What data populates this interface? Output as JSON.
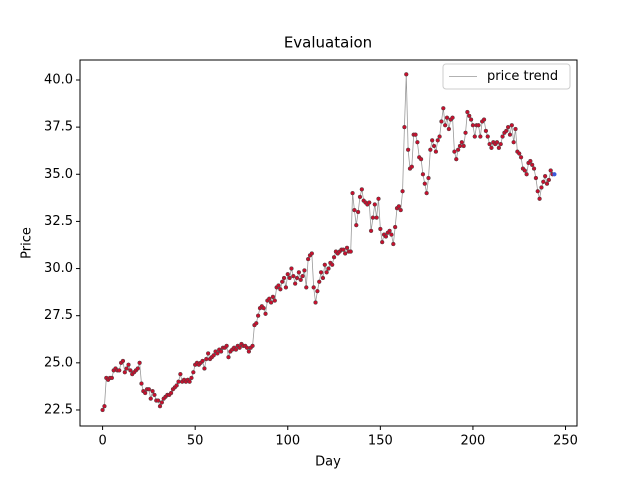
{
  "chart_data": {
    "type": "line",
    "title": "Evaluataion",
    "x_label": "Day",
    "y_label": "Price",
    "x": [
      0,
      1,
      2,
      3,
      4,
      5,
      6,
      7,
      8,
      9,
      10,
      11,
      12,
      13,
      14,
      15,
      16,
      17,
      18,
      19,
      20,
      21,
      22,
      23,
      24,
      25,
      26,
      27,
      28,
      29,
      30,
      31,
      32,
      33,
      34,
      35,
      36,
      37,
      38,
      39,
      40,
      41,
      42,
      43,
      44,
      45,
      46,
      47,
      48,
      49,
      50,
      51,
      52,
      53,
      54,
      55,
      56,
      57,
      58,
      59,
      60,
      61,
      62,
      63,
      64,
      65,
      66,
      67,
      68,
      69,
      70,
      71,
      72,
      73,
      74,
      75,
      76,
      77,
      78,
      79,
      80,
      81,
      82,
      83,
      84,
      85,
      86,
      87,
      88,
      89,
      90,
      91,
      92,
      93,
      94,
      95,
      96,
      97,
      98,
      99,
      100,
      101,
      102,
      103,
      104,
      105,
      106,
      107,
      108,
      109,
      110,
      111,
      112,
      113,
      114,
      115,
      116,
      117,
      118,
      119,
      120,
      121,
      122,
      123,
      124,
      125,
      126,
      127,
      128,
      129,
      130,
      131,
      132,
      133,
      134,
      135,
      136,
      137,
      138,
      139,
      140,
      141,
      142,
      143,
      144,
      145,
      146,
      147,
      148,
      149,
      150,
      151,
      152,
      153,
      154,
      155,
      156,
      157,
      158,
      159,
      160,
      161,
      162,
      163,
      164,
      165,
      166,
      167,
      168,
      169,
      170,
      171,
      172,
      173,
      174,
      175,
      176,
      177,
      178,
      179,
      180,
      181,
      182,
      183,
      184,
      185,
      186,
      187,
      188,
      189,
      190,
      191,
      192,
      193,
      194,
      195,
      196,
      197,
      198,
      199,
      200,
      201,
      202,
      203,
      204,
      205,
      206,
      207,
      208,
      209,
      210,
      211,
      212,
      213,
      214,
      215,
      216,
      217,
      218,
      219,
      220,
      221,
      222,
      223,
      224,
      225,
      226,
      227,
      228,
      229,
      230,
      231,
      232,
      233,
      234,
      235,
      236,
      237,
      238,
      239,
      240,
      241,
      242,
      243,
      244
    ],
    "series": [
      {
        "name": "price trend",
        "color": "#999999",
        "marker_color": "#c8102e",
        "last_marker_color": "#3b5bdb",
        "values": [
          22.5,
          22.7,
          24.2,
          24.1,
          24.2,
          24.2,
          24.6,
          24.7,
          24.6,
          24.6,
          25.0,
          25.1,
          24.5,
          24.7,
          24.9,
          24.6,
          24.4,
          24.5,
          24.6,
          24.7,
          25.0,
          23.9,
          23.5,
          23.4,
          23.6,
          23.6,
          23.1,
          23.5,
          23.3,
          23.0,
          23.0,
          22.7,
          22.9,
          23.1,
          23.2,
          23.3,
          23.3,
          23.4,
          23.6,
          23.7,
          23.8,
          24.0,
          24.4,
          24.0,
          24.1,
          24.0,
          24.1,
          24.0,
          24.2,
          24.5,
          24.9,
          25.0,
          24.9,
          25.0,
          25.1,
          24.7,
          25.2,
          25.5,
          25.2,
          25.3,
          25.4,
          25.6,
          25.5,
          25.7,
          25.6,
          25.8,
          25.8,
          25.9,
          25.3,
          25.6,
          25.7,
          25.8,
          25.7,
          25.9,
          25.8,
          26.0,
          25.9,
          25.9,
          25.8,
          25.6,
          25.8,
          25.9,
          27.0,
          27.1,
          27.5,
          27.9,
          28.0,
          27.9,
          27.6,
          28.3,
          28.4,
          28.2,
          28.5,
          28.3,
          29.0,
          29.1,
          28.9,
          29.3,
          29.5,
          29.0,
          29.7,
          29.5,
          30.0,
          29.6,
          29.2,
          29.5,
          29.8,
          29.4,
          29.6,
          29.9,
          29.0,
          30.5,
          30.7,
          30.8,
          29.0,
          28.2,
          28.8,
          29.3,
          29.8,
          29.5,
          30.2,
          29.8,
          30.0,
          30.3,
          30.2,
          30.6,
          30.9,
          30.8,
          30.9,
          31.0,
          31.0,
          30.8,
          31.1,
          30.9,
          30.9,
          34.0,
          33.1,
          32.3,
          33.0,
          33.8,
          34.2,
          33.6,
          33.5,
          33.4,
          33.5,
          32.0,
          32.7,
          33.4,
          32.7,
          33.7,
          32.1,
          31.4,
          31.8,
          31.7,
          31.9,
          32.0,
          31.8,
          31.3,
          32.2,
          33.2,
          33.3,
          33.1,
          34.1,
          37.5,
          40.3,
          36.3,
          35.3,
          35.4,
          37.1,
          37.1,
          36.7,
          35.9,
          35.8,
          35.0,
          34.5,
          34.0,
          34.8,
          36.3,
          36.8,
          36.5,
          36.2,
          36.8,
          37.0,
          37.8,
          38.5,
          37.6,
          38.0,
          37.4,
          37.9,
          38.0,
          36.2,
          35.8,
          36.3,
          36.5,
          36.7,
          36.5,
          37.2,
          38.3,
          38.1,
          37.9,
          37.6,
          37.0,
          37.6,
          37.6,
          37.0,
          37.8,
          37.9,
          37.3,
          37.0,
          36.6,
          36.4,
          36.7,
          36.6,
          36.7,
          36.4,
          36.6,
          37.0,
          37.2,
          37.3,
          37.5,
          37.1,
          37.6,
          36.7,
          37.4,
          36.2,
          36.1,
          35.9,
          35.3,
          35.2,
          35.0,
          35.6,
          35.7,
          35.5,
          35.3,
          34.8,
          34.1,
          33.7,
          34.3,
          34.6,
          34.9,
          34.5,
          34.7,
          35.2,
          35.0,
          35.0
        ]
      }
    ],
    "xlim": [
      -12.2,
      256.2
    ],
    "ylim": [
      21.65,
      41.06
    ],
    "xticks": [
      0,
      50,
      100,
      150,
      200,
      250
    ],
    "yticks": [
      22.5,
      {
        "value": 25,
        "label": "25.0"
      },
      27.5,
      {
        "value": 30,
        "label": "30.0"
      },
      32.5,
      {
        "value": 35,
        "label": "35.0"
      },
      37.5,
      {
        "value": 40,
        "label": "40.0"
      }
    ],
    "legend": "upper right"
  }
}
